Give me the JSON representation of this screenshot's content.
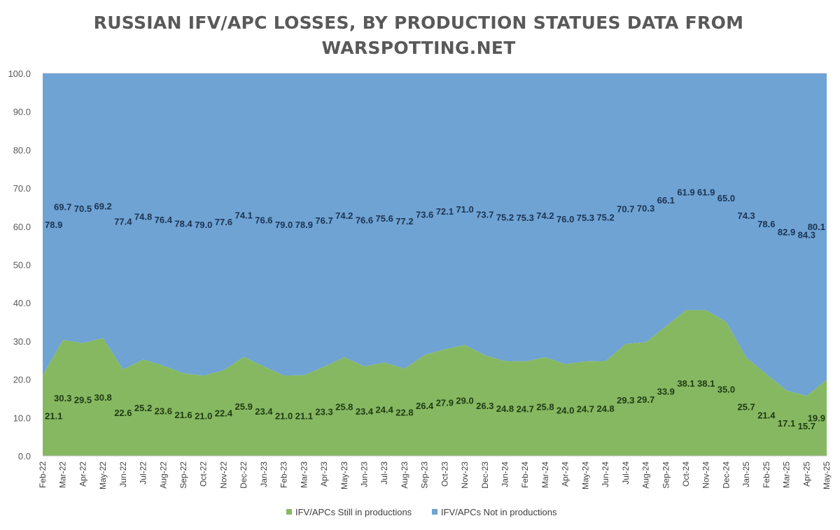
{
  "chart_data": {
    "type": "area",
    "title_lines": [
      "RUSSIAN IFV/APC LOSSES, BY PRODUCTION STATUES DATA FROM",
      "WARSPOTTING.NET"
    ],
    "categories": [
      "Feb-22",
      "Mar-22",
      "Apr-22",
      "May-22",
      "Jun-22",
      "Jul-22",
      "Aug-22",
      "Sep-22",
      "Oct-22",
      "Nov-22",
      "Dec-22",
      "Jan-23",
      "Feb-23",
      "Mar-23",
      "Apr-23",
      "May-23",
      "Jun-23",
      "Jul-23",
      "Aug-23",
      "Sep-23",
      "Oct-23",
      "Nov-23",
      "Dec-23",
      "Jan-24",
      "Feb-24",
      "Mar-24",
      "Apr-24",
      "May-24",
      "Jun-24",
      "Jul-24",
      "Aug-24",
      "Sep-24",
      "Oct-24",
      "Nov-24",
      "Dec-24",
      "Jan-25",
      "Feb-25",
      "Mar-25",
      "Apr-25",
      "May-25"
    ],
    "series": [
      {
        "name": "IFV/APCs Still in productions",
        "color": "#86b862",
        "label_color": "#1e3a12",
        "values": [
          21.1,
          30.3,
          29.5,
          30.8,
          22.6,
          25.2,
          23.6,
          21.6,
          21.0,
          22.4,
          25.9,
          23.4,
          21.0,
          21.1,
          23.3,
          25.8,
          23.4,
          24.4,
          22.8,
          26.4,
          27.9,
          29.0,
          26.3,
          24.8,
          24.7,
          25.8,
          24.0,
          24.7,
          24.8,
          29.3,
          29.7,
          33.9,
          38.1,
          38.1,
          35.0,
          25.7,
          21.4,
          17.1,
          15.7,
          19.9
        ],
        "labels": [
          "21.1",
          "30.3",
          "29.5",
          "30.8",
          "22.6",
          "25.2",
          "23.6",
          "21.6",
          "21.0",
          "22.4",
          "25.9",
          "23.4",
          "21.0",
          "21.1",
          "23.3",
          "25.8",
          "23.4",
          "24.4",
          "22.8",
          "26.4",
          "27.9",
          "29.0",
          "26.3",
          "24.8",
          "24.7",
          "25.8",
          "24.0",
          "24.7",
          "24.8",
          "29.3",
          "29.7",
          "33.9",
          "38.1",
          "38.1",
          "35.0",
          "25.7",
          "21.4",
          "17.1",
          "15.7",
          "19.9"
        ]
      },
      {
        "name": "IFV/APCs Not in productions",
        "color": "#6fa3d4",
        "label_color": "#1c3350",
        "values": [
          78.9,
          69.7,
          70.5,
          69.2,
          77.4,
          74.8,
          76.4,
          78.4,
          79.0,
          77.6,
          74.1,
          76.6,
          79.0,
          78.9,
          76.7,
          74.2,
          76.6,
          75.6,
          77.2,
          73.6,
          72.1,
          71.0,
          73.7,
          75.2,
          75.3,
          74.2,
          76.0,
          75.3,
          75.2,
          70.7,
          70.3,
          66.1,
          61.9,
          61.9,
          65.0,
          74.3,
          78.6,
          82.9,
          84.3,
          80.1
        ],
        "labels": [
          "78.9",
          "69.7",
          "70.5",
          "69.2",
          "77.4",
          "74.8",
          "76.4",
          "78.4",
          "79.0",
          "77.6",
          "74.1",
          "76.6",
          "79.0",
          "78.9",
          "76.7",
          "74.2",
          "76.6",
          "75.6",
          "77.2",
          "73.6",
          "72.1",
          "71.0",
          "73.7",
          "75.2",
          "75.3",
          "74.2",
          "76.0",
          "75.3",
          "75.2",
          "70.7",
          "70.3",
          "66.1",
          "61.9",
          "61.9",
          "65.0",
          "74.3",
          "78.6",
          "82.9",
          "84.3",
          "80.1"
        ]
      }
    ],
    "stacked": true,
    "ylim": [
      0,
      100
    ],
    "yticks": [
      "0.0",
      "10.0",
      "20.0",
      "30.0",
      "40.0",
      "50.0",
      "60.0",
      "70.0",
      "80.0",
      "90.0",
      "100.0"
    ],
    "ytick_values": [
      0,
      10,
      20,
      30,
      40,
      50,
      60,
      70,
      80,
      90,
      100
    ],
    "grid": true,
    "legend": "bottom",
    "xlabel": "",
    "ylabel": ""
  }
}
